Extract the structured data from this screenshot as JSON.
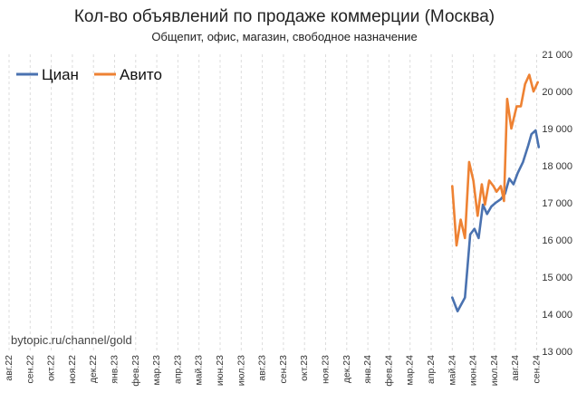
{
  "chart_data": {
    "type": "line",
    "title": "Кол-во объявлений по продаже коммерции (Москва)",
    "subtitle": "Общепит, офис, магазин, свободное назначение",
    "watermark": "bytopic.ru/channel/gold",
    "legend_position": "top-left",
    "ylim": [
      13000,
      21000
    ],
    "y_ticks": [
      13000,
      14000,
      15000,
      16000,
      17000,
      18000,
      19000,
      20000,
      21000
    ],
    "y_tick_labels": [
      "13 000",
      "14 000",
      "15 000",
      "16 000",
      "17 000",
      "18 000",
      "19 000",
      "20 000",
      "21 000"
    ],
    "y_axis_side": "right",
    "grid": "vertical-dashed",
    "x_tick_labels": [
      "авг.22",
      "сен.22",
      "окт.22",
      "ноя.22",
      "дек.22",
      "янв.23",
      "фев.23",
      "мар.23",
      "апр.23",
      "май.23",
      "июн.23",
      "июл.23",
      "авг.23",
      "сен.23",
      "окт.23",
      "ноя.23",
      "дек.23",
      "янв.24",
      "фев.24",
      "мар.24",
      "апр.24",
      "май.24",
      "июн.24",
      "июл.24",
      "авг.24",
      "сен.24"
    ],
    "series": [
      {
        "name": "Циан",
        "color": "#4a72b0",
        "points": [
          [
            21.0,
            14450
          ],
          [
            21.25,
            14080
          ],
          [
            21.6,
            14450
          ],
          [
            21.85,
            16150
          ],
          [
            22.05,
            16300
          ],
          [
            22.25,
            16050
          ],
          [
            22.45,
            16950
          ],
          [
            22.65,
            16700
          ],
          [
            22.85,
            16900
          ],
          [
            23.05,
            17000
          ],
          [
            23.3,
            17100
          ],
          [
            23.5,
            17250
          ],
          [
            23.7,
            17650
          ],
          [
            23.9,
            17500
          ],
          [
            24.1,
            17800
          ],
          [
            24.35,
            18100
          ],
          [
            24.6,
            18550
          ],
          [
            24.75,
            18850
          ],
          [
            24.95,
            18950
          ],
          [
            25.1,
            18500
          ]
        ]
      },
      {
        "name": "Авито",
        "color": "#ee8233",
        "points": [
          [
            21.0,
            17450
          ],
          [
            21.2,
            15850
          ],
          [
            21.4,
            16550
          ],
          [
            21.6,
            16050
          ],
          [
            21.8,
            18100
          ],
          [
            22.0,
            17600
          ],
          [
            22.2,
            16650
          ],
          [
            22.4,
            17500
          ],
          [
            22.55,
            16950
          ],
          [
            22.75,
            17600
          ],
          [
            22.95,
            17450
          ],
          [
            23.1,
            17300
          ],
          [
            23.3,
            17450
          ],
          [
            23.45,
            17050
          ],
          [
            23.6,
            19800
          ],
          [
            23.8,
            19000
          ],
          [
            24.05,
            19600
          ],
          [
            24.25,
            19600
          ],
          [
            24.45,
            20200
          ],
          [
            24.65,
            20450
          ],
          [
            24.85,
            20000
          ],
          [
            25.05,
            20250
          ]
        ]
      }
    ]
  }
}
